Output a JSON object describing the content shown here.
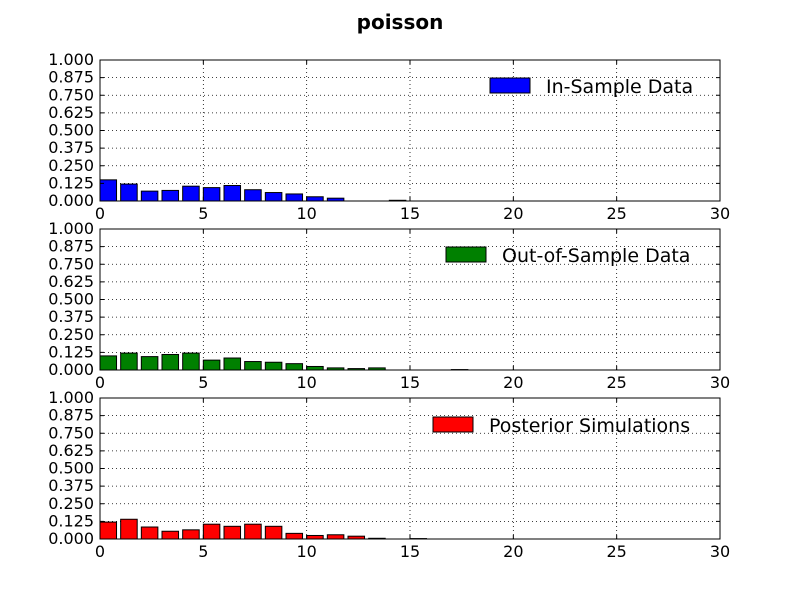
{
  "title": "poisson",
  "chart_data": [
    {
      "type": "bar",
      "legend": "In-Sample Data",
      "color": "#0000ff",
      "x": [
        0,
        1,
        2,
        3,
        4,
        5,
        6,
        7,
        8,
        9,
        10,
        11,
        12,
        13,
        14,
        15,
        16,
        17,
        18,
        19,
        20,
        21,
        22,
        23,
        24,
        25,
        26,
        27,
        28,
        29
      ],
      "values": [
        0.15,
        0.12,
        0.07,
        0.075,
        0.105,
        0.095,
        0.11,
        0.08,
        0.06,
        0.05,
        0.03,
        0.02,
        0,
        0,
        0.005,
        0,
        0,
        0,
        0,
        0,
        0,
        0,
        0,
        0,
        0,
        0,
        0,
        0,
        0,
        0
      ],
      "xlim": [
        0,
        30
      ],
      "ylim": [
        0,
        1
      ],
      "xticks": [
        "0",
        "5",
        "10",
        "15",
        "20",
        "25",
        "30"
      ],
      "yticks": [
        "0.000",
        "0.125",
        "0.250",
        "0.375",
        "0.500",
        "0.625",
        "0.750",
        "0.875",
        "1.000"
      ],
      "grid": true,
      "legend_position": "top-right"
    },
    {
      "type": "bar",
      "legend": "Out-of-Sample Data",
      "color": "#008000",
      "x": [
        0,
        1,
        2,
        3,
        4,
        5,
        6,
        7,
        8,
        9,
        10,
        11,
        12,
        13,
        14,
        15,
        16,
        17,
        18,
        19,
        20,
        21,
        22,
        23,
        24,
        25,
        26,
        27,
        28,
        29
      ],
      "values": [
        0.1,
        0.12,
        0.095,
        0.11,
        0.12,
        0.07,
        0.085,
        0.06,
        0.055,
        0.045,
        0.025,
        0.015,
        0.01,
        0.015,
        0,
        0,
        0,
        0.003,
        0,
        0,
        0,
        0,
        0,
        0,
        0,
        0,
        0,
        0,
        0,
        0
      ],
      "xlim": [
        0,
        30
      ],
      "ylim": [
        0,
        1
      ],
      "xticks": [
        "0",
        "5",
        "10",
        "15",
        "20",
        "25",
        "30"
      ],
      "yticks": [
        "0.000",
        "0.125",
        "0.250",
        "0.375",
        "0.500",
        "0.625",
        "0.750",
        "0.875",
        "1.000"
      ],
      "grid": true,
      "legend_position": "top-right"
    },
    {
      "type": "bar",
      "legend": "Posterior Simulations",
      "color": "#ff0000",
      "x": [
        0,
        1,
        2,
        3,
        4,
        5,
        6,
        7,
        8,
        9,
        10,
        11,
        12,
        13,
        14,
        15,
        16,
        17,
        18,
        19,
        20,
        21,
        22,
        23,
        24,
        25,
        26,
        27,
        28,
        29
      ],
      "values": [
        0.12,
        0.14,
        0.085,
        0.055,
        0.065,
        0.105,
        0.09,
        0.105,
        0.09,
        0.04,
        0.025,
        0.03,
        0.02,
        0.005,
        0,
        0.003,
        0,
        0,
        0,
        0,
        0,
        0,
        0,
        0,
        0,
        0,
        0,
        0,
        0,
        0
      ],
      "xlim": [
        0,
        30
      ],
      "ylim": [
        0,
        1
      ],
      "xticks": [
        "0",
        "5",
        "10",
        "15",
        "20",
        "25",
        "30"
      ],
      "yticks": [
        "0.000",
        "0.125",
        "0.250",
        "0.375",
        "0.500",
        "0.625",
        "0.750",
        "0.875",
        "1.000"
      ],
      "grid": true,
      "legend_position": "top-right"
    }
  ]
}
